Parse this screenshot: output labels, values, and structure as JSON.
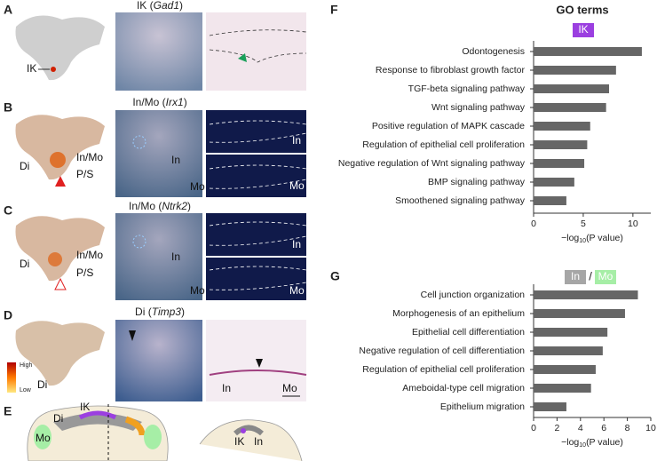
{
  "panels": {
    "A": {
      "letter": "A",
      "title": "IK",
      "gene": "Gad1",
      "labels": [
        "IK"
      ]
    },
    "B": {
      "letter": "B",
      "title": "In/Mo",
      "gene": "Irx1",
      "labels": [
        "Di",
        "In/Mo",
        "P/S",
        "In",
        "Mo",
        "In",
        "Mo"
      ]
    },
    "C": {
      "letter": "C",
      "title": "In/Mo",
      "gene": "Ntrk2",
      "labels": [
        "Di",
        "In/Mo",
        "P/S",
        "In",
        "Mo",
        "In",
        "Mo"
      ]
    },
    "D": {
      "letter": "D",
      "title": "Di",
      "gene": "Timp3",
      "labels": [
        "Di",
        "In",
        "Mo"
      ],
      "legend": [
        "High",
        "Low"
      ]
    },
    "E": {
      "letter": "E",
      "labels": [
        "IK",
        "Di",
        "Mo",
        "IK",
        "In"
      ]
    }
  },
  "chart_data": [
    {
      "type": "hbar",
      "panel": "F",
      "title": "GO terms",
      "label": "IK",
      "label_color": "#9b3fe0",
      "categories": [
        "Odontogenesis",
        "Response to fibroblast growth factor",
        "TGF-beta signaling pathway",
        "Wnt signaling pathway",
        "Positive regulation of MAPK cascade",
        "Regulation of epithelial cell proliferation",
        "Negative regulation of Wnt signaling pathway",
        "BMP signaling pathway",
        "Smoothened signaling pathway"
      ],
      "values": [
        10.9,
        8.3,
        7.6,
        7.3,
        5.7,
        5.4,
        5.1,
        4.1,
        3.3
      ],
      "color": "#666666",
      "xlim": [
        0,
        11.8
      ],
      "xticks": [
        0,
        5,
        10
      ],
      "xlabel": {
        "prefix": "−log",
        "sub": "10",
        "suffix": "(P value)"
      }
    },
    {
      "type": "hbar",
      "panel": "G",
      "label": "In",
      "label_color": "#a6a6a6",
      "separator": "/",
      "label2": "Mo",
      "label2_color": "#a6eea6",
      "categories": [
        "Cell junction organization",
        "Morphogenesis of an epithelium",
        "Epithelial cell differentiation",
        "Negative regulation of cell differentiation",
        "Regulation of epithelial cell proliferation",
        "Ameboidal-type cell migration",
        "Epithelium migration"
      ],
      "values": [
        8.9,
        7.8,
        6.3,
        5.9,
        5.3,
        4.9,
        2.8
      ],
      "color": "#666666",
      "xlim": [
        0,
        10
      ],
      "xticks": [
        0,
        2,
        4,
        6,
        8,
        10
      ],
      "xlabel": {
        "prefix": "−log",
        "sub": "10",
        "suffix": "(P value)"
      }
    }
  ]
}
